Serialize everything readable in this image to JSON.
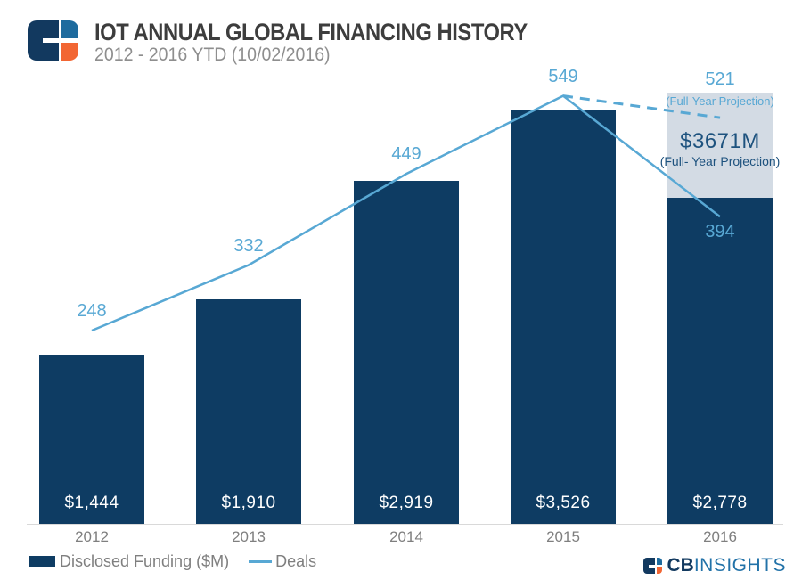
{
  "header": {
    "title": "IOT ANNUAL GLOBAL FINANCING HISTORY",
    "subtitle": "2012 - 2016 YTD (10/02/2016)"
  },
  "chart_data": {
    "type": "bar",
    "title": "IOT ANNUAL GLOBAL FINANCING HISTORY",
    "subtitle": "2012 - 2016 YTD (10/02/2016)",
    "categories": [
      "2012",
      "2013",
      "2014",
      "2015",
      "2016"
    ],
    "series": [
      {
        "name": "Disclosed Funding ($M)",
        "type": "bar",
        "values": [
          1444,
          1910,
          2919,
          3526,
          2778
        ],
        "value_labels": [
          "$1,444",
          "$1,910",
          "$2,919",
          "$3,526",
          "$2,778"
        ],
        "color": "#0e3c63"
      },
      {
        "name": "Deals",
        "type": "line",
        "values": [
          248,
          332,
          449,
          549,
          394
        ],
        "color": "#58a8d4"
      }
    ],
    "projection": {
      "category": "2016",
      "funding_total": 3671,
      "funding_total_label": "$3671M",
      "funding_note": "(Full- Year Projection)",
      "deals": 521,
      "deals_note": "(Full-Year Projection)",
      "block_color": "#d3dbe4",
      "funding_text_color": "#1d527e",
      "deals_line_style": "dashed"
    },
    "ylim_funding": [
      0,
      3900
    ],
    "ylim_deals": [
      0,
      672
    ],
    "grid": false,
    "legend_position": "bottom-left",
    "xlabel": "",
    "ylabel": ""
  },
  "legend": {
    "items": [
      {
        "label": "Disclosed Funding ($M)",
        "swatch": "bar",
        "color": "#0e3c63"
      },
      {
        "label": "Deals",
        "swatch": "line",
        "color": "#58a8d4"
      }
    ]
  },
  "branding": {
    "footer_cb": "CB",
    "footer_insights": "INSIGHTS"
  },
  "colors": {
    "bar": "#0e3c63",
    "line": "#58a8d4",
    "projection_block": "#d3dbe4",
    "projection_text": "#1d527e",
    "title": "#3d3d3d",
    "subtitle": "#8e8e8e",
    "axis_text": "#7f7f7f",
    "axis_line": "#d9d9d9",
    "bar_value_text": "#ffffff",
    "logo_navy": "#12395f",
    "logo_blue": "#1e6b9e",
    "logo_orange": "#f26633"
  }
}
